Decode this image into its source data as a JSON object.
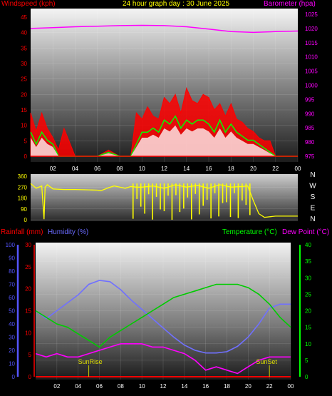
{
  "header": {
    "title": "24 hour graph day : 30 June 2025",
    "windspeed_label": "Windspeed (kph)",
    "barometer_label": "Barometer (hpa)",
    "rainfall_label": "Rainfall (mm)",
    "humidity_label": "Humidity (%)",
    "temperature_label": "Temperature (°C)",
    "dewpoint_label": "Dew Point (°C)"
  },
  "annotations": {
    "sunrise": "SunRise",
    "sunset": "SunSet"
  },
  "colors": {
    "windspeed": "#ff0000",
    "gust": "#00ff00",
    "average": "#ffffff",
    "barometer": "#ff00ff",
    "direction": "#ffff00",
    "rainfall": "#ff0000",
    "humidity": "#7070ff",
    "temperature": "#00cc00",
    "dewpoint": "#ff00ff",
    "title": "#ffff00",
    "axis_left_top": "#ff0000",
    "axis_right_top": "#ff00ff",
    "axis_rain": "#ff0000",
    "axis_hum": "#5555ff",
    "axis_temp": "#00ff00"
  },
  "chart_data": [
    {
      "type": "area",
      "x_ticks": [
        "02",
        "04",
        "06",
        "08",
        "10",
        "12",
        "14",
        "16",
        "18",
        "20",
        "22",
        "00"
      ],
      "windspeed_ticks": [
        "45",
        "40",
        "35",
        "30",
        "25",
        "20",
        "15",
        "10",
        "5",
        "0"
      ],
      "windspeed_ylim": [
        0,
        45
      ],
      "barometer_ticks": [
        "1025",
        "1020",
        "1015",
        "1010",
        "1005",
        "1000",
        "995",
        "990",
        "985",
        "980",
        "975"
      ],
      "barometer_ylim": [
        973,
        1027
      ],
      "series": [
        {
          "name": "Barometer (hpa)",
          "x": [
            0,
            2,
            4,
            6,
            8,
            10,
            12,
            14,
            16,
            18,
            20,
            22,
            24
          ],
          "values": [
            1020,
            1020.3,
            1020.6,
            1020.8,
            1021,
            1021.1,
            1021,
            1020.6,
            1019.8,
            1018.9,
            1018.6,
            1018.9,
            1019.1
          ]
        }
      ],
      "wind_x": [
        0,
        0.5,
        1,
        1.5,
        2,
        2.5,
        3,
        4,
        5,
        6,
        7,
        8,
        9,
        9.5,
        10,
        10.5,
        11,
        11.5,
        12,
        12.5,
        13,
        13.5,
        14,
        14.5,
        15,
        15.5,
        16,
        16.5,
        17,
        17.5,
        18,
        18.5,
        19,
        19.5,
        20,
        20.5,
        21,
        21.5,
        22,
        23,
        24
      ],
      "wind_max": [
        14,
        8,
        14,
        9,
        6,
        2,
        9,
        0,
        0,
        0,
        2,
        0,
        0,
        14,
        12,
        16,
        13,
        12,
        19,
        17,
        20,
        14,
        22,
        18,
        17,
        20,
        19,
        15,
        17,
        13,
        17,
        12,
        11,
        9,
        8,
        6,
        5,
        5,
        0,
        0,
        0
      ],
      "wind_avg": [
        6,
        3,
        6,
        4,
        3,
        0,
        0,
        0,
        0,
        0,
        1,
        0,
        0,
        3,
        6,
        6,
        7,
        6,
        9,
        8,
        10,
        7,
        9,
        8,
        9,
        9,
        8,
        6,
        9,
        6,
        8,
        6,
        5,
        4,
        4,
        3,
        2,
        1,
        0,
        0,
        0
      ]
    },
    {
      "type": "line",
      "direction_ticks": [
        "360",
        "270",
        "180",
        "90",
        "0"
      ],
      "compass_labels": [
        "N",
        "W",
        "S",
        "E",
        "N"
      ],
      "ylim": [
        0,
        360
      ],
      "series": [
        {
          "name": "Wind Direction",
          "x": [
            0,
            0.5,
            1,
            1.2,
            1.3,
            1.5,
            2,
            3,
            4,
            5,
            6,
            6.3,
            7,
            7.5,
            8,
            8.5,
            9,
            9.5,
            10,
            11,
            12,
            13,
            14,
            15,
            16,
            17,
            18,
            19,
            19.5,
            20,
            20.5,
            21,
            22,
            23,
            24
          ],
          "values": [
            300,
            260,
            280,
            5,
            270,
            290,
            255,
            250,
            250,
            248,
            245,
            240,
            265,
            280,
            270,
            260,
            275,
            270,
            270,
            280,
            260,
            290,
            270,
            285,
            260,
            290,
            270,
            275,
            280,
            160,
            50,
            20,
            30,
            30,
            30
          ]
        }
      ]
    },
    {
      "type": "line",
      "rainfall_ticks": [
        "30",
        "25",
        "20",
        "15",
        "10",
        "5",
        "0"
      ],
      "rainfall_ylim": [
        0,
        30
      ],
      "humidity_ticks": [
        "100",
        "90",
        "80",
        "70",
        "60",
        "50",
        "40",
        "30",
        "20",
        "10",
        "0"
      ],
      "humidity_ylim": [
        0,
        100
      ],
      "temperature_ticks": [
        "40",
        "35",
        "30",
        "25",
        "20",
        "15",
        "10",
        "5",
        "0"
      ],
      "temperature_ylim": [
        0,
        40
      ],
      "series": [
        {
          "name": "Humidity (%)",
          "x": [
            0,
            1,
            2,
            3,
            4,
            5,
            6,
            7,
            8,
            9,
            10,
            11,
            12,
            13,
            14,
            15,
            16,
            17,
            18,
            19,
            20,
            21,
            22,
            23,
            24
          ],
          "values": [
            50,
            44,
            50,
            56,
            62,
            70,
            73,
            72,
            66,
            58,
            51,
            44,
            37,
            30,
            24,
            20,
            18,
            18,
            19,
            23,
            30,
            40,
            52,
            55,
            55
          ]
        },
        {
          "name": "Temperature (°C)",
          "x": [
            0,
            1,
            2,
            3,
            4,
            5,
            6,
            7,
            8,
            9,
            10,
            11,
            12,
            13,
            14,
            15,
            16,
            17,
            18,
            19,
            20,
            21,
            22,
            23,
            24
          ],
          "values": [
            20,
            18,
            16,
            15,
            13,
            11,
            9,
            12,
            14,
            16,
            18,
            20,
            22,
            24,
            25,
            26,
            27,
            28,
            28,
            28,
            27,
            25,
            22,
            18,
            15
          ]
        },
        {
          "name": "Dew Point (°C)",
          "x": [
            0,
            1,
            2,
            3,
            4,
            5,
            6,
            7,
            8,
            9,
            10,
            11,
            12,
            13,
            14,
            15,
            16,
            17,
            18,
            19,
            20,
            21,
            22,
            23,
            24
          ],
          "values": [
            7,
            6,
            7,
            6,
            6,
            7,
            8,
            9,
            10,
            10,
            10,
            9,
            9,
            8,
            7,
            5,
            2,
            3,
            2,
            1,
            3,
            5,
            6,
            6,
            6
          ]
        },
        {
          "name": "Rainfall (mm)",
          "x": [
            0,
            24
          ],
          "values": [
            0,
            0
          ]
        }
      ]
    }
  ]
}
